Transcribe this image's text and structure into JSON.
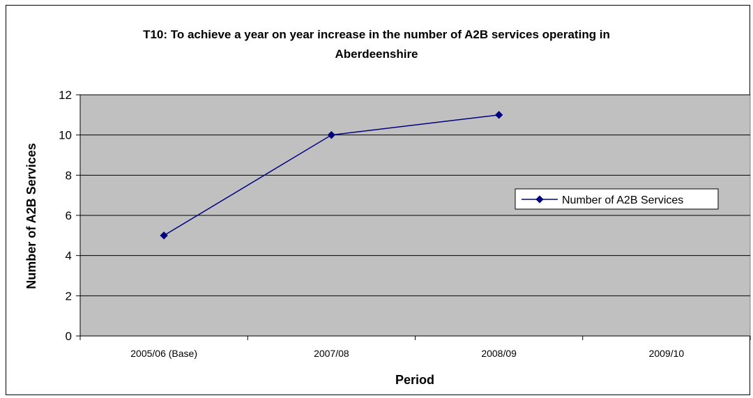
{
  "chart_data": {
    "type": "line",
    "title_line1": "T10: To achieve a year on year increase in the number of A2B services operating in",
    "title_line2": "Aberdeenshire",
    "xlabel": "Period",
    "ylabel": "Number of A2B Services",
    "categories": [
      "2005/06 (Base)",
      "2007/08",
      "2008/09",
      "2009/10"
    ],
    "series": [
      {
        "name": "Number of A2B Services",
        "values": [
          5,
          10,
          11,
          null
        ]
      }
    ],
    "ylim": [
      0,
      12
    ],
    "yticks": [
      "0",
      "2",
      "4",
      "6",
      "8",
      "10",
      "12"
    ],
    "grid": true,
    "legend": "right",
    "colors": {
      "plot_background": "#c0c0c0",
      "line": "#000080",
      "gridline": "#000000"
    }
  }
}
